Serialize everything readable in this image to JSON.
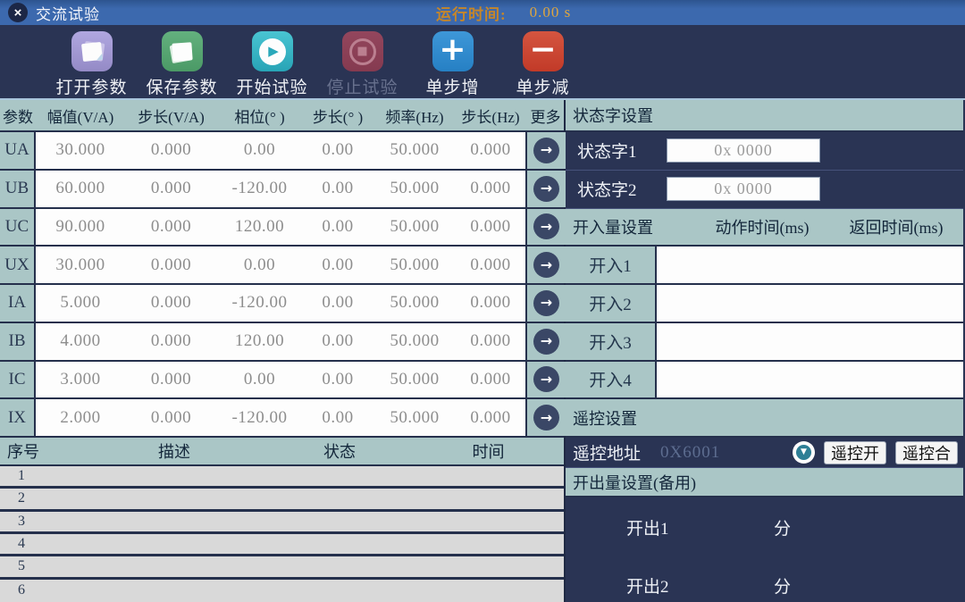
{
  "title_bar": {
    "title": "交流试验",
    "close_glyph": "×",
    "runtime_label": "运行时间:",
    "runtime_value": "0.00 s"
  },
  "toolbar": {
    "buttons": [
      {
        "label": "打开参数",
        "icon": "open-params-icon"
      },
      {
        "label": "保存参数",
        "icon": "save-params-icon"
      },
      {
        "label": "开始试验",
        "icon": "start-test-icon",
        "glyph": "▶"
      },
      {
        "label": "停止试验",
        "icon": "stop-test-icon",
        "glyph": "■",
        "disabled": true
      },
      {
        "label": "单步增",
        "icon": "step-increase-icon",
        "glyph": "+"
      },
      {
        "label": "单步减",
        "icon": "step-decrease-icon",
        "glyph": "−"
      }
    ]
  },
  "colors": {
    "titlebar_blue": "#3c69ae",
    "panel_navy": "#2a3454",
    "section_teal": "#aac6c6",
    "runtime_orange": "#c5862a",
    "open_purple": "#a29ad4",
    "save_green": "#57a674",
    "start_teal": "#2fb3c4",
    "stop_red": "#8d4057",
    "plus_blue": "#2f8cd0",
    "minus_red": "#cc4330"
  },
  "param_table": {
    "headers": [
      "参数",
      "幅值(V/A)",
      "步长(V/A)",
      "相位(°  )",
      "步长(°  )",
      "频率(Hz)",
      "步长(Hz)",
      "更多"
    ],
    "more_arrow_glyph": "→",
    "rows": [
      {
        "name": "UA",
        "values": [
          "30.000",
          "0.000",
          "0.00",
          "0.00",
          "50.000",
          "0.000"
        ]
      },
      {
        "name": "UB",
        "values": [
          "60.000",
          "0.000",
          "-120.00",
          "0.00",
          "50.000",
          "0.000"
        ]
      },
      {
        "name": "UC",
        "values": [
          "90.000",
          "0.000",
          "120.00",
          "0.00",
          "50.000",
          "0.000"
        ]
      },
      {
        "name": "UX",
        "values": [
          "30.000",
          "0.000",
          "0.00",
          "0.00",
          "50.000",
          "0.000"
        ]
      },
      {
        "name": "IA",
        "values": [
          "5.000",
          "0.000",
          "-120.00",
          "0.00",
          "50.000",
          "0.000"
        ]
      },
      {
        "name": "IB",
        "values": [
          "4.000",
          "0.000",
          "120.00",
          "0.00",
          "50.000",
          "0.000"
        ]
      },
      {
        "name": "IC",
        "values": [
          "3.000",
          "0.000",
          "0.00",
          "0.00",
          "50.000",
          "0.000"
        ]
      },
      {
        "name": "IX",
        "values": [
          "2.000",
          "0.000",
          "-120.00",
          "0.00",
          "50.000",
          "0.000"
        ]
      }
    ]
  },
  "event_table": {
    "headers": [
      "序号",
      "描述",
      "状态",
      "时间"
    ],
    "rows": [
      {
        "index": "1"
      },
      {
        "index": "2"
      },
      {
        "index": "3"
      },
      {
        "index": "4"
      },
      {
        "index": "5"
      },
      {
        "index": "6"
      }
    ]
  },
  "right_panel": {
    "status_section": {
      "title": "状态字设置",
      "fields": [
        {
          "label": "状态字1",
          "value": "0x 0000"
        },
        {
          "label": "状态字2",
          "value": "0x 0000"
        }
      ]
    },
    "input_section": {
      "title": "开入量设置",
      "action_time_header": "动作时间(ms)",
      "return_time_header": "返回时间(ms)",
      "rows": [
        {
          "label": "开入1"
        },
        {
          "label": "开入2"
        },
        {
          "label": "开入3"
        },
        {
          "label": "开入4"
        }
      ]
    },
    "remote_section": {
      "title": "遥控设置",
      "address_label": "遥控地址",
      "address_value": "0X6001",
      "dropdown_glyph": "▼",
      "open_button": "遥控开",
      "close_button": "遥控合"
    },
    "output_section": {
      "title": "开出量设置(备用)",
      "rows": [
        {
          "label": "开出1",
          "state": "分"
        },
        {
          "label": "开出2",
          "state": "分"
        }
      ]
    }
  }
}
